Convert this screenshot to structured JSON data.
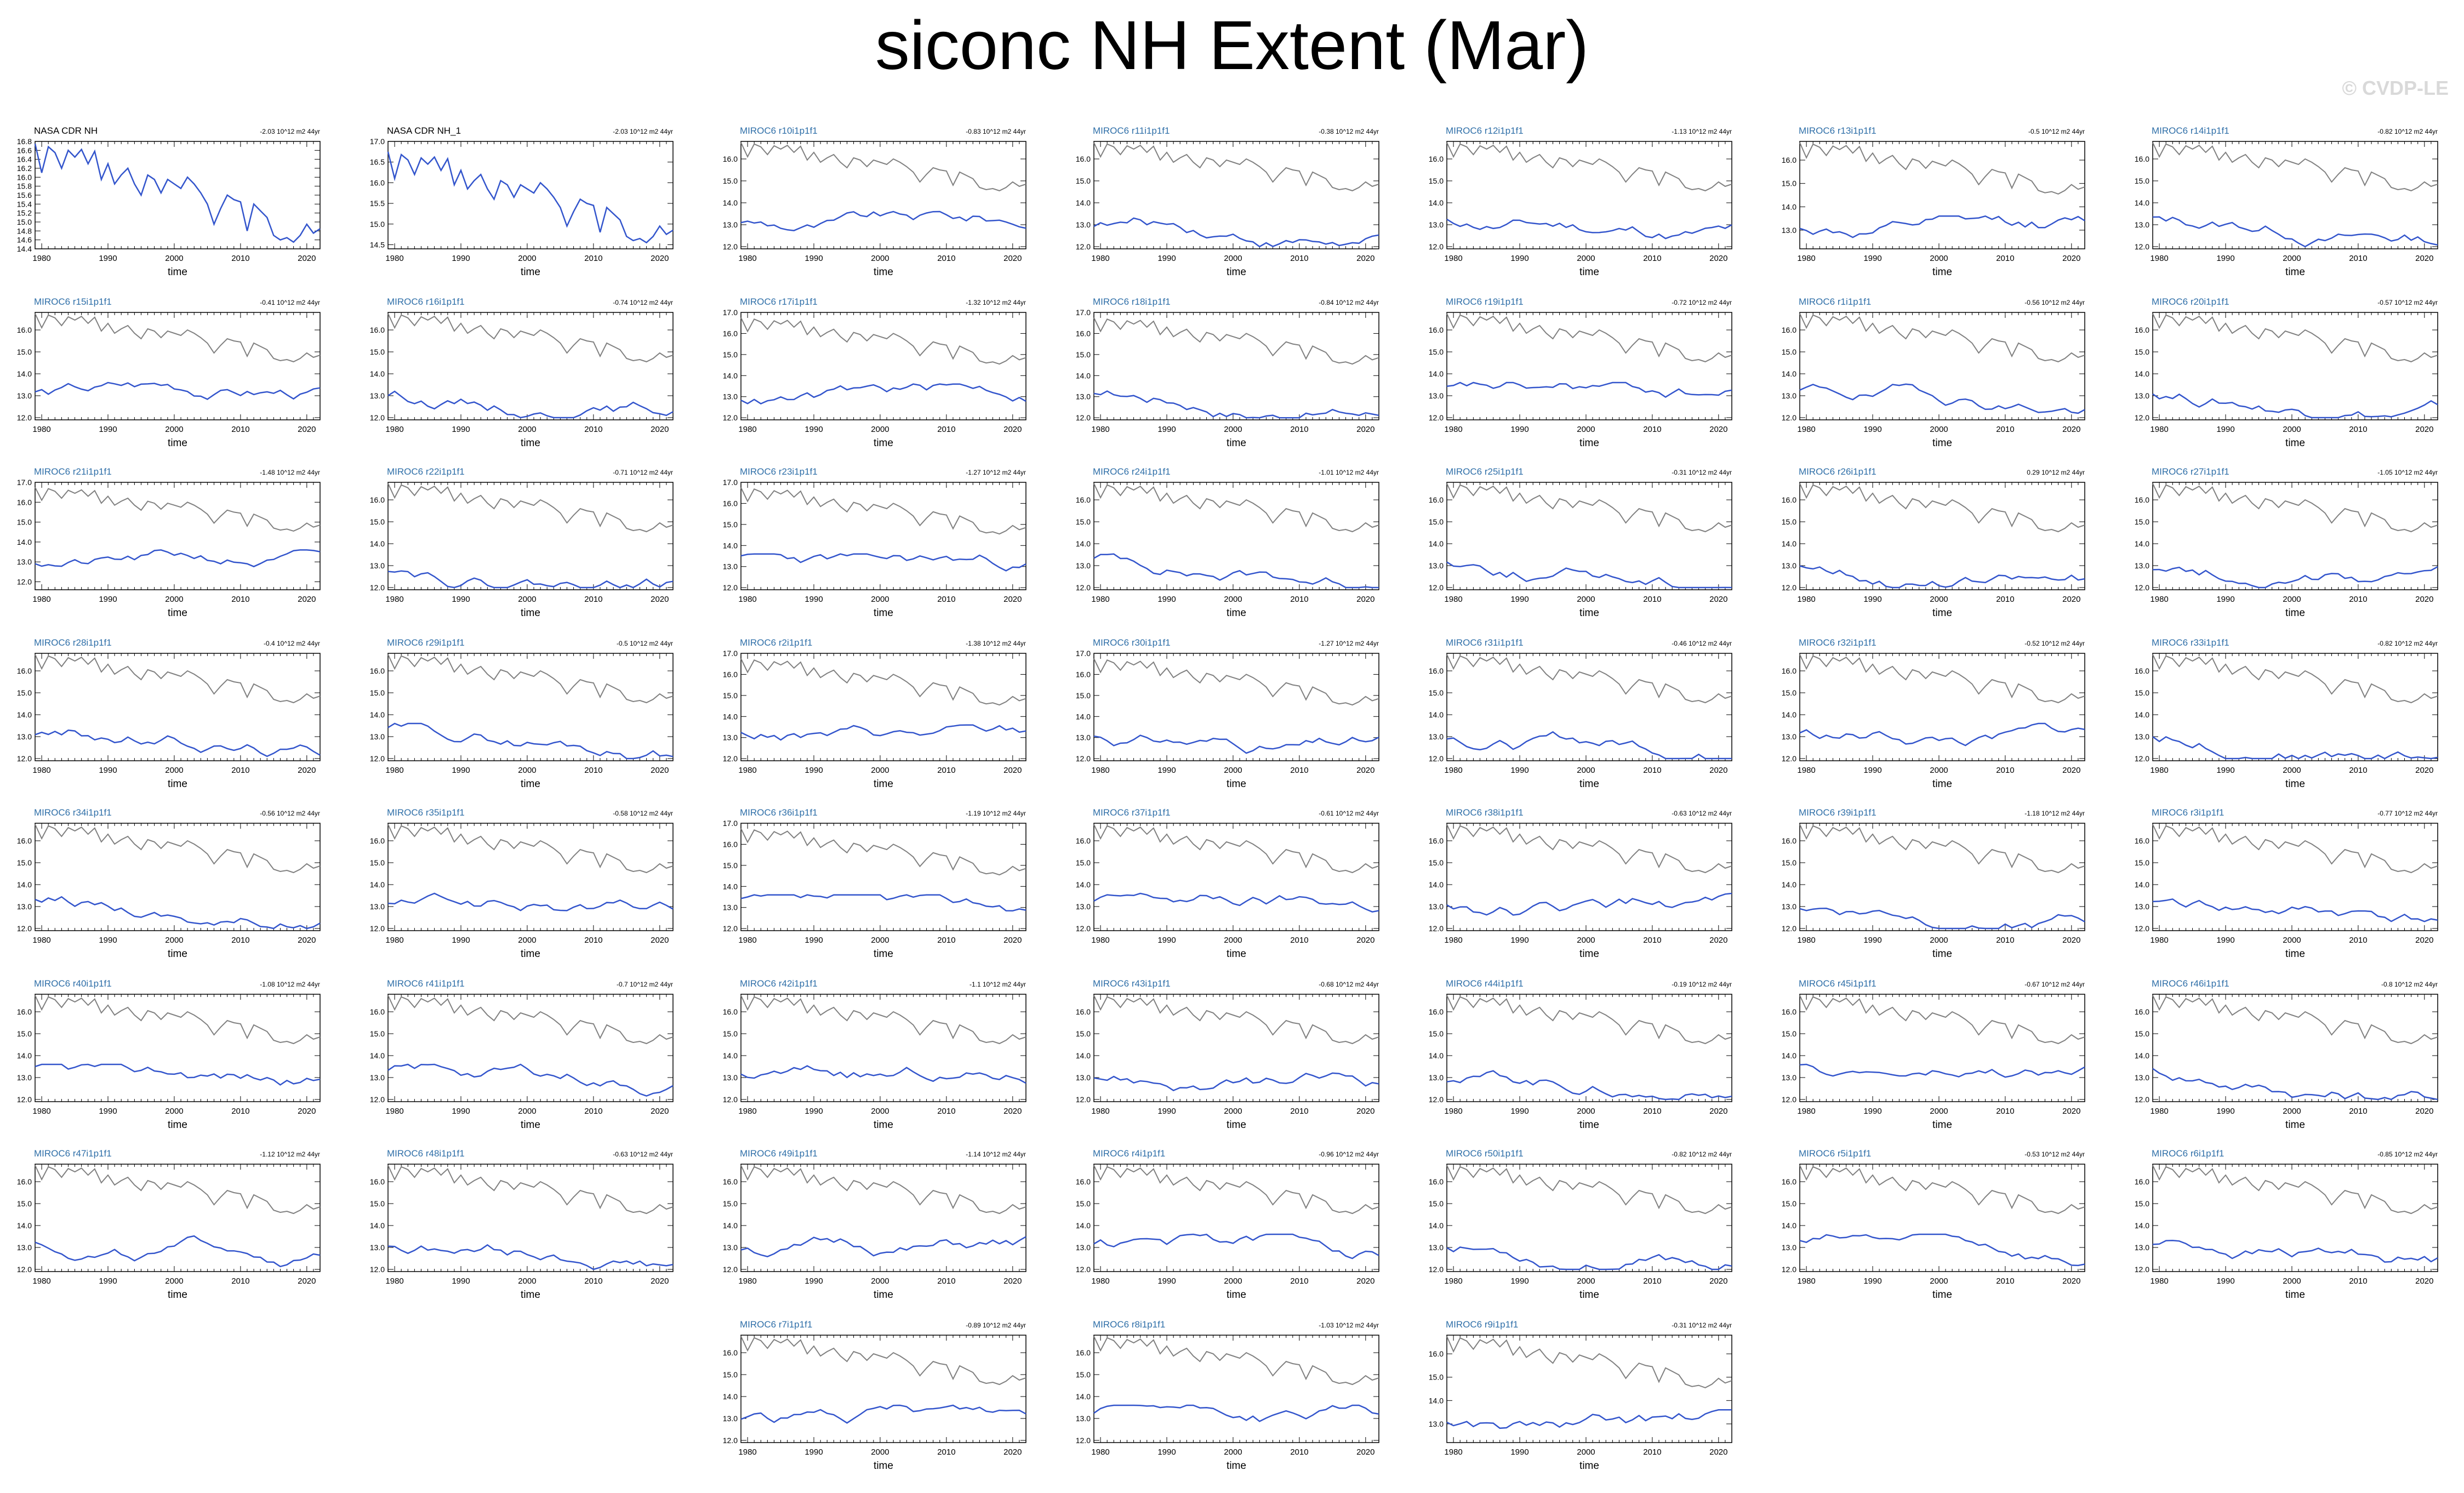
{
  "page": {
    "title": "siconc NH Extent (Mar)",
    "copyright": "© CVDP-LE"
  },
  "style": {
    "model_color": "#3355cc",
    "obs_color": "#808080",
    "obs_title_color": "#000000",
    "model_title_color": "#2f6fa8"
  },
  "x_ticks": [
    1980,
    1990,
    2000,
    2010,
    2020
  ],
  "x_label": "time",
  "x_range": [
    1979,
    2022
  ],
  "obs_series": [
    16.75,
    16.1,
    16.68,
    16.55,
    16.2,
    16.6,
    16.45,
    16.62,
    16.3,
    16.58,
    15.95,
    16.3,
    15.85,
    16.05,
    16.2,
    15.85,
    15.6,
    16.05,
    15.95,
    15.65,
    15.95,
    15.85,
    15.75,
    16.0,
    15.85,
    15.65,
    15.4,
    14.95,
    15.3,
    15.6,
    15.5,
    15.45,
    14.8,
    15.4,
    15.25,
    15.1,
    14.7,
    14.6,
    14.65,
    14.55,
    14.7,
    14.95,
    14.75,
    14.85
  ],
  "chart_data": [
    {
      "type": "line",
      "title": "NASA CDR NH",
      "trend": "-2.03 10^12 m2 44yr",
      "x": "1979-2022",
      "ylim": [
        14.4,
        16.8
      ],
      "yticks": [
        "14.4",
        "14.6",
        "14.8",
        "15.0",
        "15.2",
        "15.4",
        "15.6",
        "15.8",
        "16.0",
        "16.2",
        "16.4",
        "16.6",
        "16.8"
      ],
      "series": [
        {
          "values": "obs_series"
        }
      ]
    },
    {
      "type": "line",
      "title": "NASA CDR NH_1",
      "trend": "-2.03 10^12 m2 44yr",
      "ylim": [
        14.4,
        17.0
      ],
      "yticks": [
        "14.5",
        "15.0",
        "15.5",
        "16.0",
        "16.5",
        "17.0"
      ],
      "series": [
        {
          "values": "obs_series"
        }
      ]
    },
    {
      "type": "line",
      "title": "MIROC6 r10i1p1f1",
      "trend": "-0.83 10^12 m2 44yr",
      "ylim": [
        11.9,
        16.8
      ],
      "yticks": [
        "12.0",
        "13.0",
        "14.0",
        "15.0",
        "16.0"
      ],
      "series": [
        {
          "values": "model"
        },
        {
          "values": "obs_series"
        }
      ]
    },
    {
      "type": "line",
      "title": "MIROC6 r11i1p1f1",
      "trend": "-0.38 10^12 m2 44yr",
      "ylim": [
        11.9,
        16.8
      ],
      "yticks": [
        "12.0",
        "13.0",
        "14.0",
        "15.0",
        "16.0"
      ]
    },
    {
      "type": "line",
      "title": "MIROC6 r12i1p1f1",
      "trend": "-1.13 10^12 m2 44yr",
      "ylim": [
        11.9,
        16.8
      ],
      "yticks": [
        "12.0",
        "13.0",
        "14.0",
        "15.0",
        "16.0"
      ]
    },
    {
      "type": "line",
      "title": "MIROC6 r13i1p1f1",
      "trend": "-0.5 10^12 m2 44yr",
      "ylim": [
        12.2,
        16.8
      ],
      "yticks": [
        "13.0",
        "14.0",
        "15.0",
        "16.0"
      ]
    },
    {
      "type": "line",
      "title": "MIROC6 r14i1p1f1",
      "trend": "-0.82 10^12 m2 44yr",
      "ylim": [
        11.9,
        16.8
      ],
      "yticks": [
        "12.0",
        "13.0",
        "14.0",
        "15.0",
        "16.0"
      ]
    },
    {
      "type": "line",
      "title": "MIROC6 r15i1p1f1",
      "trend": "-0.41 10^12 m2 44yr",
      "ylim": [
        11.9,
        16.8
      ],
      "yticks": [
        "12.0",
        "13.0",
        "14.0",
        "15.0",
        "16.0"
      ]
    },
    {
      "type": "line",
      "title": "MIROC6 r16i1p1f1",
      "trend": "-0.74 10^12 m2 44yr",
      "ylim": [
        11.9,
        16.8
      ],
      "yticks": [
        "12.0",
        "13.0",
        "14.0",
        "15.0",
        "16.0"
      ]
    },
    {
      "type": "line",
      "title": "MIROC6 r17i1p1f1",
      "trend": "-1.32 10^12 m2 44yr",
      "ylim": [
        11.9,
        17.0
      ],
      "yticks": [
        "12.0",
        "13.0",
        "14.0",
        "15.0",
        "16.0",
        "17.0"
      ]
    },
    {
      "type": "line",
      "title": "MIROC6 r18i1p1f1",
      "trend": "-0.84 10^12 m2 44yr",
      "ylim": [
        11.9,
        17.0
      ],
      "yticks": [
        "12.0",
        "13.0",
        "14.0",
        "15.0",
        "16.0",
        "17.0"
      ]
    },
    {
      "type": "line",
      "title": "MIROC6 r19i1p1f1",
      "trend": "-0.72 10^12 m2 44yr",
      "ylim": [
        11.9,
        16.8
      ],
      "yticks": [
        "12.0",
        "13.0",
        "14.0",
        "15.0",
        "16.0"
      ]
    },
    {
      "type": "line",
      "title": "MIROC6 r1i1p1f1",
      "trend": "-0.56 10^12 m2 44yr",
      "ylim": [
        11.9,
        16.8
      ],
      "yticks": [
        "12.0",
        "13.0",
        "14.0",
        "15.0",
        "16.0"
      ]
    },
    {
      "type": "line",
      "title": "MIROC6 r20i1p1f1",
      "trend": "-0.57 10^12 m2 44yr",
      "ylim": [
        11.9,
        16.8
      ],
      "yticks": [
        "12.0",
        "13.0",
        "14.0",
        "15.0",
        "16.0"
      ]
    },
    {
      "type": "line",
      "title": "MIROC6 r21i1p1f1",
      "trend": "-1.48 10^12 m2 44yr",
      "ylim": [
        11.6,
        17.0
      ],
      "yticks": [
        "12.0",
        "13.0",
        "14.0",
        "15.0",
        "16.0",
        "17.0"
      ]
    },
    {
      "type": "line",
      "title": "MIROC6 r22i1p1f1",
      "trend": "-0.71 10^12 m2 44yr",
      "ylim": [
        11.9,
        16.8
      ],
      "yticks": [
        "12.0",
        "13.0",
        "14.0",
        "15.0",
        "16.0"
      ]
    },
    {
      "type": "line",
      "title": "MIROC6 r23i1p1f1",
      "trend": "-1.27 10^12 m2 44yr",
      "ylim": [
        11.9,
        17.0
      ],
      "yticks": [
        "12.0",
        "13.0",
        "14.0",
        "15.0",
        "16.0",
        "17.0"
      ]
    },
    {
      "type": "line",
      "title": "MIROC6 r24i1p1f1",
      "trend": "-1.01 10^12 m2 44yr",
      "ylim": [
        11.9,
        16.8
      ],
      "yticks": [
        "12.0",
        "13.0",
        "14.0",
        "15.0",
        "16.0"
      ]
    },
    {
      "type": "line",
      "title": "MIROC6 r25i1p1f1",
      "trend": "-0.31 10^12 m2 44yr",
      "ylim": [
        11.9,
        16.8
      ],
      "yticks": [
        "12.0",
        "13.0",
        "14.0",
        "15.0",
        "16.0"
      ]
    },
    {
      "type": "line",
      "title": "MIROC6 r26i1p1f1",
      "trend": "0.29 10^12 m2 44yr",
      "ylim": [
        11.9,
        16.8
      ],
      "yticks": [
        "12.0",
        "13.0",
        "14.0",
        "15.0",
        "16.0"
      ]
    },
    {
      "type": "line",
      "title": "MIROC6 r27i1p1f1",
      "trend": "-1.05 10^12 m2 44yr",
      "ylim": [
        11.9,
        16.8
      ],
      "yticks": [
        "12.0",
        "13.0",
        "14.0",
        "15.0",
        "16.0"
      ]
    },
    {
      "type": "line",
      "title": "MIROC6 r28i1p1f1",
      "trend": "-0.4 10^12 m2 44yr",
      "ylim": [
        11.9,
        16.8
      ],
      "yticks": [
        "12.0",
        "13.0",
        "14.0",
        "15.0",
        "16.0"
      ]
    },
    {
      "type": "line",
      "title": "MIROC6 r29i1p1f1",
      "trend": "-0.5 10^12 m2 44yr",
      "ylim": [
        11.9,
        16.8
      ],
      "yticks": [
        "12.0",
        "13.0",
        "14.0",
        "15.0",
        "16.0"
      ]
    },
    {
      "type": "line",
      "title": "MIROC6 r2i1p1f1",
      "trend": "-1.38 10^12 m2 44yr",
      "ylim": [
        11.9,
        17.0
      ],
      "yticks": [
        "12.0",
        "13.0",
        "14.0",
        "15.0",
        "16.0",
        "17.0"
      ]
    },
    {
      "type": "line",
      "title": "MIROC6 r30i1p1f1",
      "trend": "-1.27 10^12 m2 44yr",
      "ylim": [
        11.9,
        17.0
      ],
      "yticks": [
        "12.0",
        "13.0",
        "14.0",
        "15.0",
        "16.0",
        "17.0"
      ]
    },
    {
      "type": "line",
      "title": "MIROC6 r31i1p1f1",
      "trend": "-0.46 10^12 m2 44yr",
      "ylim": [
        11.9,
        16.8
      ],
      "yticks": [
        "12.0",
        "13.0",
        "14.0",
        "15.0",
        "16.0"
      ]
    },
    {
      "type": "line",
      "title": "MIROC6 r32i1p1f1",
      "trend": "-0.52 10^12 m2 44yr",
      "ylim": [
        11.9,
        16.8
      ],
      "yticks": [
        "12.0",
        "13.0",
        "14.0",
        "15.0",
        "16.0"
      ]
    },
    {
      "type": "line",
      "title": "MIROC6 r33i1p1f1",
      "trend": "-0.82 10^12 m2 44yr",
      "ylim": [
        11.9,
        16.8
      ],
      "yticks": [
        "12.0",
        "13.0",
        "14.0",
        "15.0",
        "16.0"
      ]
    },
    {
      "type": "line",
      "title": "MIROC6 r34i1p1f1",
      "trend": "-0.56 10^12 m2 44yr",
      "ylim": [
        11.9,
        16.8
      ],
      "yticks": [
        "12.0",
        "13.0",
        "14.0",
        "15.0",
        "16.0"
      ]
    },
    {
      "type": "line",
      "title": "MIROC6 r35i1p1f1",
      "trend": "-0.58 10^12 m2 44yr",
      "ylim": [
        11.9,
        16.8
      ],
      "yticks": [
        "12.0",
        "13.0",
        "14.0",
        "15.0",
        "16.0"
      ]
    },
    {
      "type": "line",
      "title": "MIROC6 r36i1p1f1",
      "trend": "-1.19 10^12 m2 44yr",
      "ylim": [
        11.9,
        17.0
      ],
      "yticks": [
        "12.0",
        "13.0",
        "14.0",
        "15.0",
        "16.0",
        "17.0"
      ]
    },
    {
      "type": "line",
      "title": "MIROC6 r37i1p1f1",
      "trend": "-0.61 10^12 m2 44yr",
      "ylim": [
        11.9,
        16.8
      ],
      "yticks": [
        "12.0",
        "13.0",
        "14.0",
        "15.0",
        "16.0"
      ]
    },
    {
      "type": "line",
      "title": "MIROC6 r38i1p1f1",
      "trend": "-0.63 10^12 m2 44yr",
      "ylim": [
        11.9,
        16.8
      ],
      "yticks": [
        "12.0",
        "13.0",
        "14.0",
        "15.0",
        "16.0"
      ]
    },
    {
      "type": "line",
      "title": "MIROC6 r39i1p1f1",
      "trend": "-1.18 10^12 m2 44yr",
      "ylim": [
        11.9,
        16.8
      ],
      "yticks": [
        "12.0",
        "13.0",
        "14.0",
        "15.0",
        "16.0"
      ]
    },
    {
      "type": "line",
      "title": "MIROC6 r3i1p1f1",
      "trend": "-0.77 10^12 m2 44yr",
      "ylim": [
        11.9,
        16.8
      ],
      "yticks": [
        "12.0",
        "13.0",
        "14.0",
        "15.0",
        "16.0"
      ]
    },
    {
      "type": "line",
      "title": "MIROC6 r40i1p1f1",
      "trend": "-1.08 10^12 m2 44yr",
      "ylim": [
        11.9,
        16.8
      ],
      "yticks": [
        "12.0",
        "13.0",
        "14.0",
        "15.0",
        "16.0"
      ]
    },
    {
      "type": "line",
      "title": "MIROC6 r41i1p1f1",
      "trend": "-0.7 10^12 m2 44yr",
      "ylim": [
        11.9,
        16.8
      ],
      "yticks": [
        "12.0",
        "13.0",
        "14.0",
        "15.0",
        "16.0"
      ]
    },
    {
      "type": "line",
      "title": "MIROC6 r42i1p1f1",
      "trend": "-1.1 10^12 m2 44yr",
      "ylim": [
        11.9,
        16.8
      ],
      "yticks": [
        "12.0",
        "13.0",
        "14.0",
        "15.0",
        "16.0"
      ]
    },
    {
      "type": "line",
      "title": "MIROC6 r43i1p1f1",
      "trend": "-0.68 10^12 m2 44yr",
      "ylim": [
        11.9,
        16.8
      ],
      "yticks": [
        "12.0",
        "13.0",
        "14.0",
        "15.0",
        "16.0"
      ]
    },
    {
      "type": "line",
      "title": "MIROC6 r44i1p1f1",
      "trend": "-0.19 10^12 m2 44yr",
      "ylim": [
        11.9,
        16.8
      ],
      "yticks": [
        "12.0",
        "13.0",
        "14.0",
        "15.0",
        "16.0"
      ]
    },
    {
      "type": "line",
      "title": "MIROC6 r45i1p1f1",
      "trend": "-0.67 10^12 m2 44yr",
      "ylim": [
        11.9,
        16.8
      ],
      "yticks": [
        "12.0",
        "13.0",
        "14.0",
        "15.0",
        "16.0"
      ]
    },
    {
      "type": "line",
      "title": "MIROC6 r46i1p1f1",
      "trend": "-0.8 10^12 m2 44yr",
      "ylim": [
        11.9,
        16.8
      ],
      "yticks": [
        "12.0",
        "13.0",
        "14.0",
        "15.0",
        "16.0"
      ]
    },
    {
      "type": "line",
      "title": "MIROC6 r47i1p1f1",
      "trend": "-1.12 10^12 m2 44yr",
      "ylim": [
        11.9,
        16.8
      ],
      "yticks": [
        "12.0",
        "13.0",
        "14.0",
        "15.0",
        "16.0"
      ]
    },
    {
      "type": "line",
      "title": "MIROC6 r48i1p1f1",
      "trend": "-0.63 10^12 m2 44yr",
      "ylim": [
        11.9,
        16.8
      ],
      "yticks": [
        "12.0",
        "13.0",
        "14.0",
        "15.0",
        "16.0"
      ]
    },
    {
      "type": "line",
      "title": "MIROC6 r49i1p1f1",
      "trend": "-1.14 10^12 m2 44yr",
      "ylim": [
        11.9,
        16.8
      ],
      "yticks": [
        "12.0",
        "13.0",
        "14.0",
        "15.0",
        "16.0"
      ]
    },
    {
      "type": "line",
      "title": "MIROC6 r4i1p1f1",
      "trend": "-0.96 10^12 m2 44yr",
      "ylim": [
        11.9,
        16.8
      ],
      "yticks": [
        "12.0",
        "13.0",
        "14.0",
        "15.0",
        "16.0"
      ]
    },
    {
      "type": "line",
      "title": "MIROC6 r50i1p1f1",
      "trend": "-0.82 10^12 m2 44yr",
      "ylim": [
        11.9,
        16.8
      ],
      "yticks": [
        "12.0",
        "13.0",
        "14.0",
        "15.0",
        "16.0"
      ]
    },
    {
      "type": "line",
      "title": "MIROC6 r5i1p1f1",
      "trend": "-0.53 10^12 m2 44yr",
      "ylim": [
        11.9,
        16.8
      ],
      "yticks": [
        "12.0",
        "13.0",
        "14.0",
        "15.0",
        "16.0"
      ]
    },
    {
      "type": "line",
      "title": "MIROC6 r6i1p1f1",
      "trend": "-0.85 10^12 m2 44yr",
      "ylim": [
        11.9,
        16.8
      ],
      "yticks": [
        "12.0",
        "13.0",
        "14.0",
        "15.0",
        "16.0"
      ]
    },
    {
      "type": "line",
      "title": "MIROC6 r7i1p1f1",
      "trend": "-0.89 10^12 m2 44yr",
      "ylim": [
        11.9,
        16.8
      ],
      "yticks": [
        "12.0",
        "13.0",
        "14.0",
        "15.0",
        "16.0"
      ]
    },
    {
      "type": "line",
      "title": "MIROC6 r8i1p1f1",
      "trend": "-1.03 10^12 m2 44yr",
      "ylim": [
        11.9,
        16.8
      ],
      "yticks": [
        "12.0",
        "13.0",
        "14.0",
        "15.0",
        "16.0"
      ]
    },
    {
      "type": "line",
      "title": "MIROC6 r9i1p1f1",
      "trend": "-0.31 10^12 m2 44yr",
      "ylim": [
        12.2,
        16.8
      ],
      "yticks": [
        "13.0",
        "14.0",
        "15.0",
        "16.0"
      ]
    }
  ]
}
